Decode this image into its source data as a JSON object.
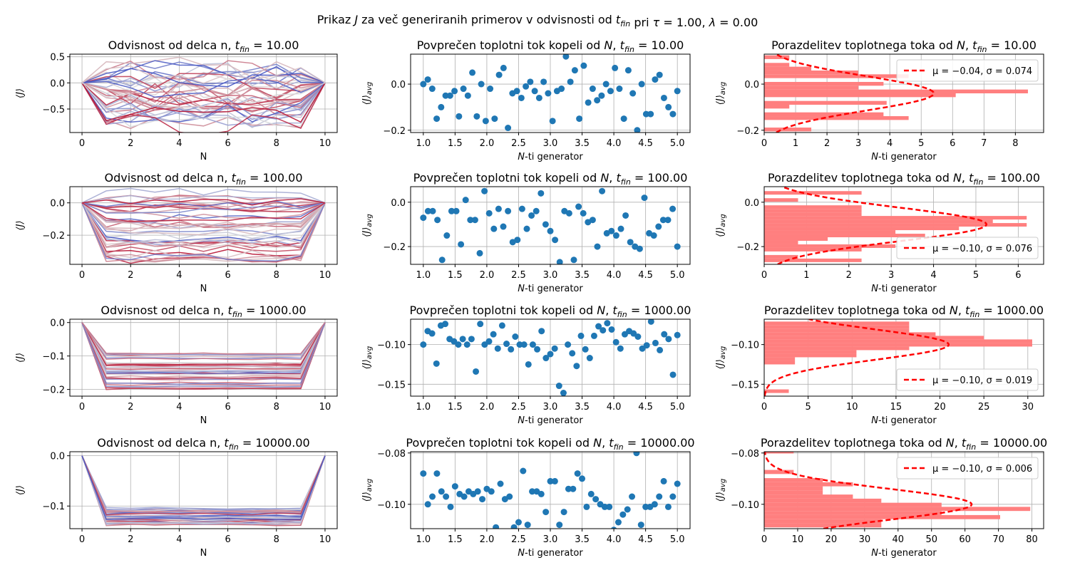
{
  "suptitle": "Prikaz J za več generiranih primerov v odvisnosti od t_fin pri τ = 1.00, λ = 0.00",
  "colors": {
    "scatter": "#1f77b4",
    "hist": "#ff7f7f",
    "fit": "#ff0000",
    "grid": "#b0b0b0",
    "coolwarm_low": "#3b4cc0",
    "coolwarm_mid": "#dddddd",
    "coolwarm_high": "#b40426"
  },
  "chart_data": [
    {
      "type": "line",
      "row": 0,
      "col": 0,
      "title": "Odvisnost od delca n, t_fin = 10.00",
      "xlabel": "N",
      "ylabel": "⟨J⟩",
      "xlim": [
        -0.5,
        10.5
      ],
      "ylim": [
        -0.95,
        0.55
      ],
      "xticks": [
        0,
        2,
        4,
        6,
        8,
        10
      ],
      "yticks": [
        -0.5,
        0.0,
        0.5
      ],
      "yticklabels": [
        "−0.5",
        "0.0",
        "0.5"
      ],
      "x": [
        0,
        1,
        2,
        3,
        4,
        5,
        6,
        7,
        8,
        9,
        10
      ],
      "spread_range": [
        -0.9,
        0.3
      ],
      "grid": true
    },
    {
      "type": "scatter",
      "row": 0,
      "col": 1,
      "title": "Povprečen toplotni tok kopeli od N, t_fin = 10.00",
      "xlabel": "N-ti generator",
      "ylabel": "⟨J⟩_avg",
      "xlim": [
        0.8,
        5.2
      ],
      "ylim": [
        -0.21,
        0.13
      ],
      "xticks": [
        1.0,
        1.5,
        2.0,
        2.5,
        3.0,
        3.5,
        4.0,
        4.5,
        5.0
      ],
      "yticks": [
        -0.2,
        0.0
      ],
      "yticklabels": [
        "−0.2",
        "0.0"
      ],
      "values": [
        0.0,
        0.02,
        -0.02,
        -0.15,
        -0.1,
        -0.05,
        -0.05,
        -0.03,
        -0.14,
        -0.02,
        -0.05,
        0.05,
        -0.14,
        0.0,
        -0.16,
        -0.02,
        -0.15,
        0.04,
        0.07,
        -0.19,
        -0.04,
        -0.03,
        -0.06,
        -0.01,
        0.01,
        -0.03,
        -0.06,
        0.01,
        -0.04,
        -0.16,
        -0.03,
        -0.02,
        0.12,
        0.01,
        0.06,
        -0.15,
        0.08,
        -0.08,
        -0.02,
        -0.07,
        -0.05,
        0.0,
        -0.03,
        0.07,
        -0.02,
        -0.15,
        0.06,
        -0.04,
        -0.2,
        0.0,
        -0.13,
        -0.13,
        0.02,
        0.04,
        -0.06,
        -0.1,
        -0.13,
        -0.03
      ],
      "grid": true
    },
    {
      "type": "bar",
      "row": 0,
      "col": 2,
      "title": "Porazdelitev toplotnega toka od N, t_fin = 10.00",
      "xlabel": "N-ti generator",
      "ylabel": "⟨J⟩_avg",
      "xlim": [
        0,
        8.9
      ],
      "ylim": [
        -0.21,
        0.13
      ],
      "xticks": [
        0,
        1,
        2,
        3,
        4,
        5,
        6,
        7,
        8
      ],
      "yticks": [
        -0.2,
        0.0
      ],
      "yticklabels": [
        "−0.2",
        "0.0"
      ],
      "bin_edges": [
        -0.205,
        -0.1885,
        -0.172,
        -0.1555,
        -0.139,
        -0.1225,
        -0.106,
        -0.0895,
        -0.073,
        -0.0565,
        -0.04,
        -0.0235,
        -0.007,
        0.0095,
        0.026,
        0.0425,
        0.059,
        0.0755,
        0.092,
        0.1085,
        0.125
      ],
      "counts": [
        1.5,
        0,
        0,
        4.6,
        3.8,
        0,
        0.8,
        3.9,
        0,
        6.1,
        8.4,
        3,
        3.8,
        0,
        4.6,
        3,
        1.5,
        0.8,
        0,
        0.8
      ],
      "fit": {
        "mu": -0.04,
        "sigma": 0.074,
        "scale": 5.4
      },
      "legend": "μ = −0.04, σ = 0.074",
      "legend_loc": "upper right",
      "grid": true
    },
    {
      "type": "line",
      "row": 1,
      "col": 0,
      "title": "Odvisnost od delca n, t_fin = 100.00",
      "xlabel": "N",
      "ylabel": "⟨J⟩",
      "xlim": [
        -0.5,
        10.5
      ],
      "ylim": [
        -0.38,
        0.1
      ],
      "xticks": [
        0,
        2,
        4,
        6,
        8,
        10
      ],
      "yticks": [
        -0.2,
        0.0
      ],
      "yticklabels": [
        "−0.2",
        "0.0"
      ],
      "x": [
        0,
        1,
        2,
        3,
        4,
        5,
        6,
        7,
        8,
        9,
        10
      ],
      "spread_range": [
        -0.36,
        0.08
      ],
      "grid": true
    },
    {
      "type": "scatter",
      "row": 1,
      "col": 1,
      "title": "Povprečen toplotni tok kopeli od N, t_fin = 100.00",
      "xlabel": "N-ti generator",
      "ylabel": "⟨J⟩_avg",
      "xlim": [
        0.8,
        5.2
      ],
      "ylim": [
        -0.28,
        0.07
      ],
      "xticks": [
        1.0,
        1.5,
        2.0,
        2.5,
        3.0,
        3.5,
        4.0,
        4.5,
        5.0
      ],
      "yticks": [
        -0.2,
        0.0
      ],
      "yticklabels": [
        "−0.2",
        "0.0"
      ],
      "values": [
        -0.07,
        -0.04,
        -0.04,
        -0.08,
        -0.26,
        -0.15,
        -0.04,
        -0.04,
        -0.19,
        0.01,
        -0.08,
        -0.08,
        -0.23,
        0.05,
        -0.05,
        -0.12,
        -0.03,
        -0.11,
        -0.04,
        -0.18,
        -0.17,
        -0.03,
        -0.12,
        -0.06,
        -0.04,
        0.04,
        -0.1,
        -0.13,
        -0.17,
        -0.27,
        -0.04,
        -0.05,
        -0.26,
        -0.02,
        -0.05,
        -0.09,
        -0.08,
        -0.2,
        0.05,
        -0.14,
        -0.13,
        -0.15,
        -0.12,
        -0.06,
        -0.18,
        -0.2,
        -0.21,
        0.02,
        -0.14,
        -0.15,
        -0.11,
        -0.08,
        -0.08,
        -0.03,
        -0.2
      ],
      "grid": true
    },
    {
      "type": "bar",
      "row": 1,
      "col": 2,
      "title": "Porazdelitev toplotnega toka od N, t_fin = 100.00",
      "xlabel": "N-ti generator",
      "ylabel": "⟨J⟩_avg",
      "xlim": [
        0,
        6.6
      ],
      "ylim": [
        -0.28,
        0.07
      ],
      "xticks": [
        0,
        1,
        2,
        3,
        4,
        5,
        6
      ],
      "yticks": [
        -0.2,
        0.0
      ],
      "yticklabels": [
        "−0.2",
        "0.0"
      ],
      "bin_edges": [
        -0.27,
        -0.254,
        -0.238,
        -0.222,
        -0.206,
        -0.19,
        -0.174,
        -0.158,
        -0.142,
        -0.126,
        -0.11,
        -0.094,
        -0.078,
        -0.062,
        -0.046,
        -0.03,
        -0.014,
        0.002,
        0.018,
        0.034,
        0.05
      ],
      "counts": [
        2.3,
        0.8,
        0,
        2.3,
        3.1,
        0.8,
        1.5,
        3.8,
        3.1,
        4.6,
        6.2,
        5.4,
        6.2,
        2.3,
        2.3,
        2.3,
        0,
        0.8,
        0,
        2.3
      ],
      "fit": {
        "mu": -0.1,
        "sigma": 0.076,
        "scale": 5.25
      },
      "legend": "μ = −0.10, σ = 0.076",
      "legend_loc": "lower right",
      "grid": true
    },
    {
      "type": "line",
      "row": 2,
      "col": 0,
      "title": "Odvisnost od delca n, t_fin = 1000.00",
      "xlabel": "N",
      "ylabel": "⟨J⟩",
      "xlim": [
        -0.5,
        10.5
      ],
      "ylim": [
        -0.22,
        0.01
      ],
      "xticks": [
        0,
        2,
        4,
        6,
        8,
        10
      ],
      "yticks": [
        -0.2,
        -0.15,
        -0.1,
        -0.05,
        0.0
      ],
      "yticklabels": [
        "−0.2",
        "−0.1",
        "−0.1",
        "−0.1",
        "0.0"
      ],
      "yticks_shown": [
        -0.2,
        -0.1,
        0.0
      ],
      "x": [
        0,
        1,
        2,
        3,
        4,
        5,
        6,
        7,
        8,
        9,
        10
      ],
      "spread_range": [
        -0.2,
        -0.09
      ],
      "grid": true
    },
    {
      "type": "scatter",
      "row": 2,
      "col": 1,
      "title": "Povprečen toplotni tok kopeli od N, t_fin = 1000.00",
      "xlabel": "N-ti generator",
      "ylabel": "⟨J⟩_avg",
      "xlim": [
        0.8,
        5.2
      ],
      "ylim": [
        -0.165,
        -0.068
      ],
      "xticks": [
        1.0,
        1.5,
        2.0,
        2.5,
        3.0,
        3.5,
        4.0,
        4.5,
        5.0
      ],
      "yticks": [
        -0.15,
        -0.1
      ],
      "yticklabels": [
        "−0.15",
        "−0.10"
      ],
      "values": [
        -0.1,
        -0.083,
        -0.086,
        -0.124,
        -0.076,
        -0.074,
        -0.093,
        -0.096,
        -0.1,
        -0.093,
        -0.1,
        -0.093,
        -0.134,
        -0.074,
        -0.1,
        -0.096,
        -0.087,
        -0.105,
        -0.076,
        -0.099,
        -0.106,
        -0.09,
        -0.1,
        -0.1,
        -0.125,
        -0.1,
        -0.106,
        -0.083,
        -0.117,
        -0.112,
        -0.105,
        -0.152,
        -0.161,
        -0.1,
        -0.111,
        -0.127,
        -0.089,
        -0.106,
        -0.117,
        -0.089,
        -0.077,
        -0.082,
        -0.073,
        -0.081,
        -0.097,
        -0.105,
        -0.087,
        -0.083,
        -0.086,
        -0.09,
        -0.105,
        -0.101,
        -0.071,
        -0.098,
        -0.107,
        -0.087,
        -0.093,
        -0.138,
        -0.088
      ],
      "grid": true
    },
    {
      "type": "bar",
      "row": 2,
      "col": 2,
      "title": "Porazdelitev toplotnega toka od N, t_fin = 1000.00",
      "xlabel": "N-ti generator",
      "ylabel": "⟨J⟩_avg",
      "xlim": [
        0,
        31.8
      ],
      "ylim": [
        -0.165,
        -0.068
      ],
      "xticks": [
        0,
        5,
        10,
        15,
        20,
        25,
        30
      ],
      "yticks": [
        -0.15,
        -0.1
      ],
      "yticklabels": [
        "−0.15",
        "−0.10"
      ],
      "bin_edges": [
        -0.161,
        -0.1565,
        -0.152,
        -0.1475,
        -0.143,
        -0.1385,
        -0.134,
        -0.1295,
        -0.125,
        -0.1205,
        -0.116,
        -0.1115,
        -0.107,
        -0.1025,
        -0.098,
        -0.0935,
        -0.089,
        -0.0845,
        -0.08,
        -0.0755,
        -0.071
      ],
      "counts": [
        2.8,
        0,
        0,
        0,
        0,
        0,
        0,
        0,
        3.5,
        3.5,
        10.5,
        10.5,
        16.5,
        30.5,
        30.5,
        25,
        19.5,
        16.5,
        16.5,
        16.5
      ],
      "fit": {
        "mu": -0.1,
        "sigma": 0.019,
        "scale": 21
      },
      "legend": "μ = −0.10, σ = 0.019",
      "legend_loc": "lower right",
      "grid": true
    },
    {
      "type": "line",
      "row": 3,
      "col": 0,
      "title": "Odvisnost od delca n, t_fin = 10000.00",
      "xlabel": "N",
      "ylabel": "⟨J⟩",
      "xlim": [
        -0.5,
        10.5
      ],
      "ylim": [
        -0.145,
        0.008
      ],
      "xticks": [
        0,
        2,
        4,
        6,
        8,
        10
      ],
      "yticks": [
        -0.1,
        0.0
      ],
      "yticklabels": [
        "−0.1",
        "0.0"
      ],
      "x": [
        0,
        1,
        2,
        3,
        4,
        5,
        6,
        7,
        8,
        9,
        10
      ],
      "spread_range": [
        -0.138,
        -0.102
      ],
      "grid": true
    },
    {
      "type": "scatter",
      "row": 3,
      "col": 1,
      "title": "Povprečen toplotni tok kopeli od N, t_fin = 10000.00",
      "xlabel": "N-ti generator",
      "ylabel": "⟨J⟩_avg",
      "xlim": [
        0.8,
        5.2
      ],
      "ylim": [
        -0.1095,
        -0.0795
      ],
      "xticks": [
        1.0,
        1.5,
        2.0,
        2.5,
        3.0,
        3.5,
        4.0,
        4.5,
        5.0
      ],
      "yticks": [
        -0.1,
        -0.08
      ],
      "yticklabels": [
        "−0.10",
        "−0.08"
      ],
      "values": [
        -0.088,
        -0.1,
        -0.097,
        -0.088,
        -0.095,
        -0.097,
        -0.101,
        -0.093,
        -0.096,
        -0.097,
        -0.095,
        -0.096,
        -0.095,
        -0.098,
        -0.094,
        -0.095,
        -0.109,
        -0.092,
        -0.098,
        -0.097,
        -0.109,
        -0.107,
        -0.087,
        -0.108,
        -0.095,
        -0.095,
        -0.096,
        -0.103,
        -0.091,
        -0.091,
        -0.108,
        -0.103,
        -0.094,
        -0.094,
        -0.088,
        -0.09,
        -0.101,
        -0.096,
        -0.098,
        -0.1,
        -0.101,
        -0.101,
        -0.11,
        -0.107,
        -0.104,
        -0.102,
        -0.097,
        -0.08,
        -0.108,
        -0.101,
        -0.101,
        -0.1,
        -0.097,
        -0.091,
        -0.101,
        -0.097,
        -0.092
      ],
      "grid": true
    },
    {
      "type": "bar",
      "row": 3,
      "col": 2,
      "title": "Porazdelitev toplotnega toka od N, t_fin = 10000.00",
      "xlabel": "N-ti generator",
      "ylabel": "⟨J⟩_avg",
      "xlim": [
        0,
        83.5
      ],
      "ylim": [
        -0.1095,
        -0.0795
      ],
      "xticks": [
        0,
        10,
        20,
        30,
        40,
        50,
        60,
        70,
        80
      ],
      "yticks": [
        -0.1,
        -0.08
      ],
      "yticklabels": [
        "−0.10",
        "−0.08"
      ],
      "bin_edges": [
        -0.109,
        -0.1074,
        -0.1058,
        -0.1042,
        -0.1026,
        -0.101,
        -0.0994,
        -0.0978,
        -0.0962,
        -0.0946,
        -0.093,
        -0.0914,
        -0.0898,
        -0.0882,
        -0.0866,
        -0.085,
        -0.0834,
        -0.0818,
        -0.0802,
        -0.0786,
        -0.077
      ],
      "counts": [
        35,
        35,
        70.5,
        53,
        79.5,
        53,
        35,
        26.5,
        17.5,
        17.5,
        26.5,
        17.5,
        0,
        8.8,
        0,
        0,
        0,
        0,
        8.8,
        0
      ],
      "fit": {
        "mu": -0.1,
        "sigma": 0.006,
        "scale": 62
      },
      "legend": "μ = −0.10, σ = 0.006",
      "legend_loc": "upper right",
      "grid": true
    }
  ]
}
